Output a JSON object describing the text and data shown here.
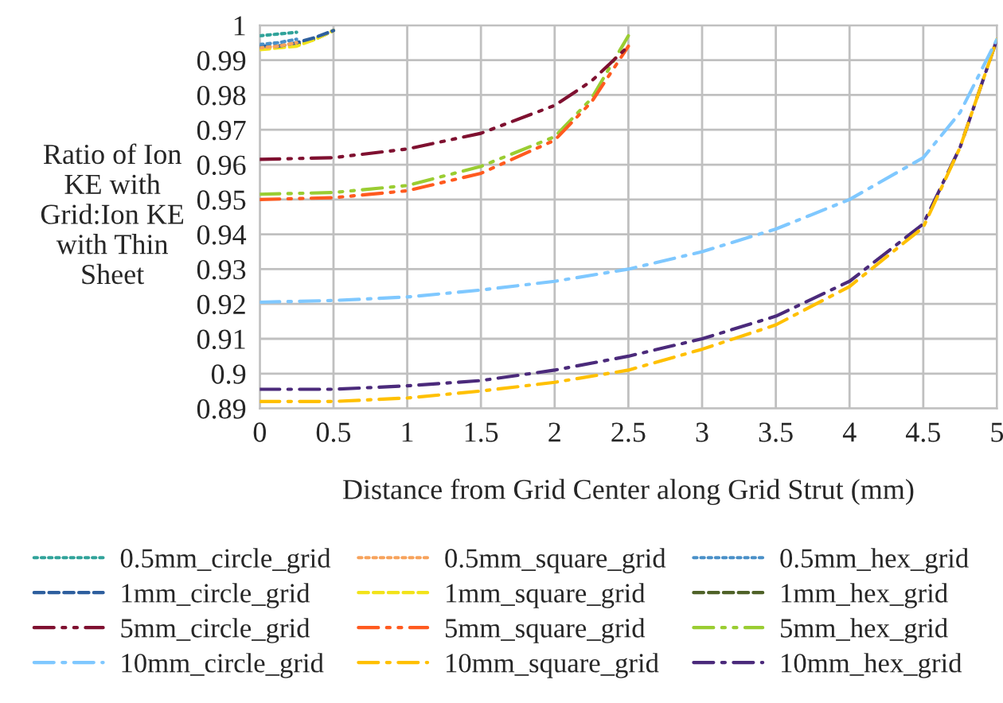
{
  "chart_data": {
    "type": "line",
    "xlabel": "Distance from Grid Center along Grid Strut (mm)",
    "ylabel": "Ratio of Ion\nKE with\nGrid:Ion KE\nwith Thin\nSheet",
    "xlim": [
      0,
      5
    ],
    "ylim": [
      0.89,
      1
    ],
    "xticks": [
      0,
      0.5,
      1,
      1.5,
      2,
      2.5,
      3,
      3.5,
      4,
      4.5,
      5
    ],
    "yticks": [
      0.89,
      0.9,
      0.91,
      0.92,
      0.93,
      0.94,
      0.95,
      0.96,
      0.97,
      0.98,
      0.99,
      1
    ],
    "grid": true,
    "legend": "bottom",
    "marker": "none",
    "series": [
      {
        "name": "0.5mm_circle_grid",
        "color": "#31a39a",
        "line_style": "dotted",
        "x": [
          0,
          0.125,
          0.25
        ],
        "values": [
          0.997,
          0.9975,
          0.998
        ]
      },
      {
        "name": "0.5mm_square_grid",
        "color": "#f7a35c",
        "line_style": "dotted",
        "x": [
          0,
          0.125,
          0.25
        ],
        "values": [
          0.9935,
          0.994,
          0.995
        ]
      },
      {
        "name": "0.5mm_hex_grid",
        "color": "#4a90c8",
        "line_style": "dotted",
        "x": [
          0,
          0.125,
          0.25
        ],
        "values": [
          0.9945,
          0.995,
          0.996
        ]
      },
      {
        "name": "1mm_circle_grid",
        "color": "#2e5f9e",
        "line_style": "dashed",
        "x": [
          0,
          0.125,
          0.25,
          0.375,
          0.5
        ],
        "values": [
          0.994,
          0.994,
          0.995,
          0.9965,
          0.9985
        ]
      },
      {
        "name": "1mm_square_grid",
        "color": "#f2e31a",
        "line_style": "dashed",
        "x": [
          0,
          0.125,
          0.25,
          0.375,
          0.5
        ],
        "values": [
          0.993,
          0.9935,
          0.994,
          0.996,
          0.9985
        ]
      },
      {
        "name": "1mm_hex_grid",
        "color": "#4f6228",
        "line_style": "dashed",
        "x": [
          0,
          0.125,
          0.25,
          0.375,
          0.5
        ],
        "values": [
          0.9935,
          0.994,
          0.9945,
          0.996,
          0.9985
        ]
      },
      {
        "name": "5mm_circle_grid",
        "color": "#7f1030",
        "line_style": "dashdotdot",
        "x": [
          0,
          0.5,
          1,
          1.5,
          2,
          2.25,
          2.5
        ],
        "values": [
          0.9615,
          0.962,
          0.9645,
          0.969,
          0.977,
          0.984,
          0.994
        ]
      },
      {
        "name": "5mm_square_grid",
        "color": "#ff5a1f",
        "line_style": "dashdotdot",
        "x": [
          0,
          0.5,
          1,
          1.5,
          2,
          2.25,
          2.5
        ],
        "values": [
          0.95,
          0.9505,
          0.9525,
          0.9575,
          0.967,
          0.978,
          0.994
        ]
      },
      {
        "name": "5mm_hex_grid",
        "color": "#9acd32",
        "line_style": "dashdotdot",
        "x": [
          0,
          0.5,
          1,
          1.5,
          2,
          2.25,
          2.5
        ],
        "values": [
          0.9515,
          0.952,
          0.954,
          0.9595,
          0.968,
          0.979,
          0.997
        ]
      },
      {
        "name": "10mm_circle_grid",
        "color": "#7fc8ff",
        "line_style": "dashdot",
        "x": [
          0,
          0.5,
          1,
          1.5,
          2,
          2.5,
          3,
          3.5,
          4,
          4.5,
          4.75,
          5
        ],
        "values": [
          0.9205,
          0.921,
          0.922,
          0.924,
          0.9265,
          0.93,
          0.935,
          0.9415,
          0.95,
          0.962,
          0.975,
          0.996
        ]
      },
      {
        "name": "10mm_square_grid",
        "color": "#ffc000",
        "line_style": "dashdot",
        "x": [
          0,
          0.5,
          1,
          1.5,
          2,
          2.5,
          3,
          3.5,
          4,
          4.5,
          4.75,
          5
        ],
        "values": [
          0.892,
          0.892,
          0.893,
          0.895,
          0.8975,
          0.901,
          0.907,
          0.914,
          0.925,
          0.942,
          0.965,
          0.996
        ]
      },
      {
        "name": "10mm_hex_grid",
        "color": "#4b2a7b",
        "line_style": "dashdot",
        "x": [
          0,
          0.5,
          1,
          1.5,
          2,
          2.5,
          3,
          3.5,
          4,
          4.5,
          4.75,
          5
        ],
        "values": [
          0.8955,
          0.8955,
          0.8965,
          0.898,
          0.901,
          0.905,
          0.91,
          0.9165,
          0.9265,
          0.943,
          0.965,
          0.996
        ]
      }
    ]
  }
}
